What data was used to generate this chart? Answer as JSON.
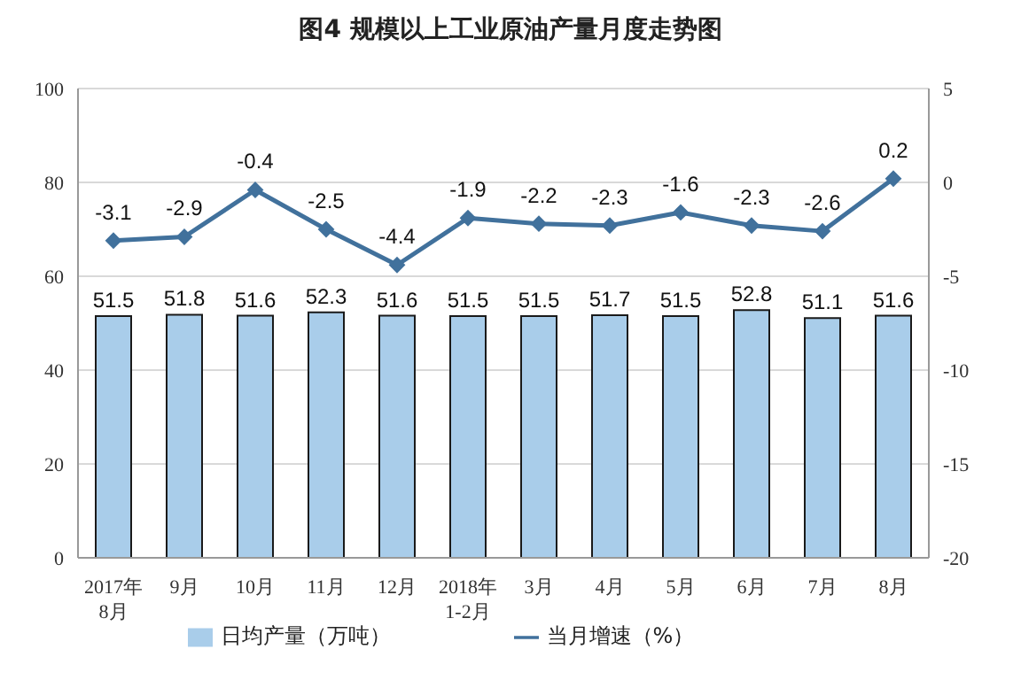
{
  "chart_data": {
    "type": "bar",
    "title": "图4  规模以上工业原油产量月度走势图",
    "categories": [
      "2017年8月",
      "9月",
      "10月",
      "11月",
      "12月",
      "2018年1-2月",
      "3月",
      "4月",
      "5月",
      "6月",
      "7月",
      "8月"
    ],
    "series": [
      {
        "name": "日均产量（万吨）",
        "color": "#a9cdea",
        "values": [
          51.5,
          51.8,
          51.6,
          52.3,
          51.6,
          51.5,
          51.5,
          51.7,
          51.5,
          52.8,
          51.1,
          51.6
        ]
      },
      {
        "name": "当月增速（%）",
        "type": "line",
        "axis": "y2",
        "color": "#41719c",
        "values": [
          -3.1,
          -2.9,
          -0.4,
          -2.5,
          -4.4,
          -1.9,
          -2.2,
          -2.3,
          -1.6,
          -2.3,
          -2.6,
          0.2
        ]
      }
    ],
    "ylim": [
      0,
      100
    ],
    "yticks": [
      0,
      20,
      40,
      60,
      80,
      100
    ],
    "y2lim": [
      -20,
      5
    ],
    "y2ticks": [
      -20,
      -15,
      -10,
      -5,
      0,
      5
    ],
    "data_labels": true,
    "grid": "y",
    "legend": "bottom",
    "marker": "diamond",
    "line_style": "solid"
  }
}
